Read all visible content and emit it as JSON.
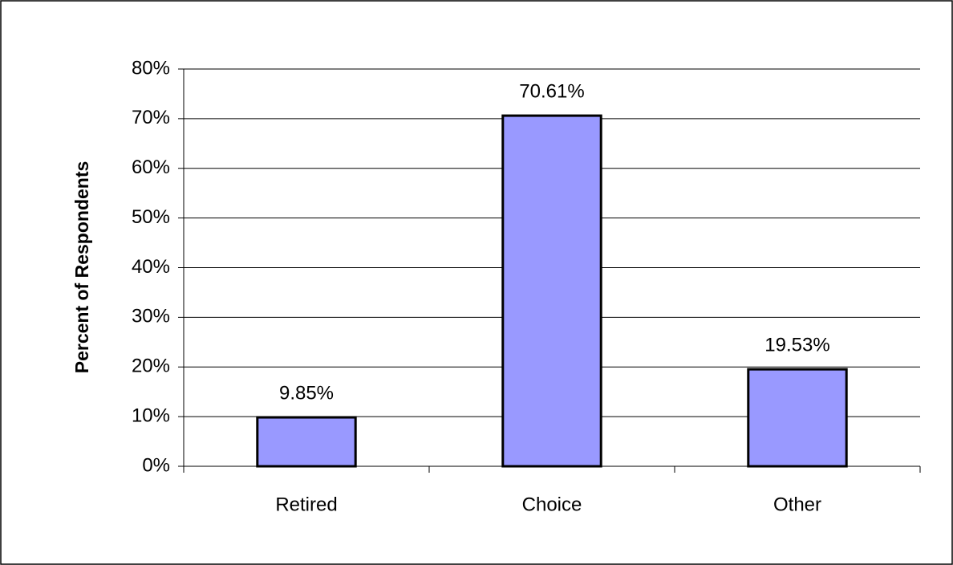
{
  "chart_data": {
    "type": "bar",
    "y_axis_label": "Percent of Respondents",
    "categories": [
      "Retired",
      "Choice",
      "Other"
    ],
    "values": [
      9.85,
      70.61,
      19.53
    ],
    "value_labels": [
      "9.85%",
      "70.61%",
      "19.53%"
    ],
    "color": "#9999ff",
    "ylim": [
      0,
      80
    ],
    "yticks": [
      {
        "value": 0,
        "label": "0%"
      },
      {
        "value": 10,
        "label": "10%"
      },
      {
        "value": 20,
        "label": "20%"
      },
      {
        "value": 30,
        "label": "30%"
      },
      {
        "value": 40,
        "label": "40%"
      },
      {
        "value": 50,
        "label": "50%"
      },
      {
        "value": 60,
        "label": "60%"
      },
      {
        "value": 70,
        "label": "70%"
      },
      {
        "value": 80,
        "label": "80%"
      }
    ],
    "grid": true
  }
}
